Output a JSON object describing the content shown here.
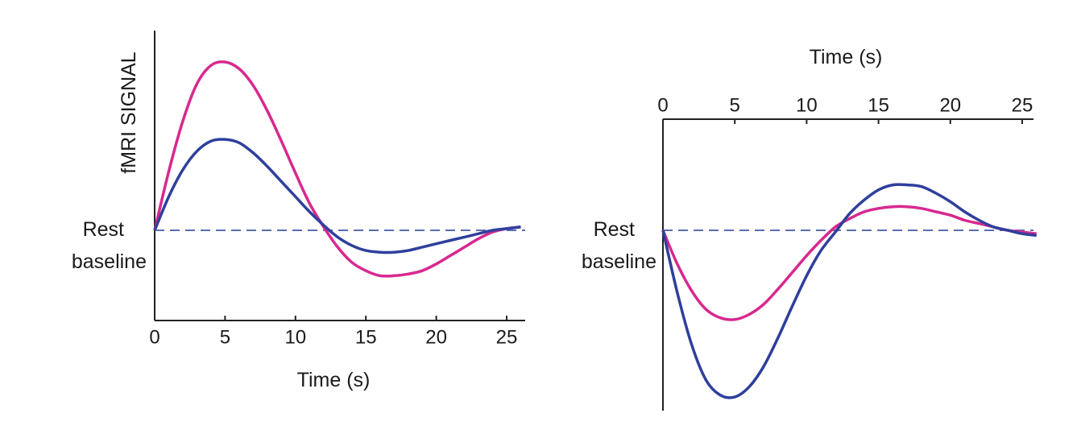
{
  "chart_data": [
    {
      "type": "line",
      "title": "",
      "xlabel": "Time (s)",
      "ylabel": "fMRI SIGNAL",
      "baseline_label": [
        "Rest",
        "baseline"
      ],
      "x_ticks": [
        "0",
        "5",
        "10",
        "15",
        "20",
        "25"
      ],
      "xlim": [
        0,
        26
      ],
      "ylim": [
        -0.54,
        1.18
      ],
      "grid": false,
      "x": [
        0,
        1,
        2,
        3,
        4,
        5,
        6,
        7,
        8,
        9,
        10,
        11,
        12,
        13,
        14,
        15,
        16,
        17,
        18,
        19,
        20,
        21,
        22,
        23,
        24,
        25,
        26
      ],
      "series": [
        {
          "name": "magenta",
          "color": "#d8288f",
          "values": [
            0,
            0.35,
            0.65,
            0.87,
            0.98,
            1.0,
            0.96,
            0.86,
            0.71,
            0.53,
            0.34,
            0.16,
            0.02,
            -0.1,
            -0.19,
            -0.24,
            -0.27,
            -0.27,
            -0.26,
            -0.24,
            -0.2,
            -0.15,
            -0.1,
            -0.05,
            -0.01,
            0.01,
            0.02
          ]
        },
        {
          "name": "blue",
          "color": "#2f3f9c",
          "values": [
            0,
            0.2,
            0.36,
            0.47,
            0.53,
            0.54,
            0.52,
            0.46,
            0.38,
            0.29,
            0.2,
            0.11,
            0.03,
            -0.04,
            -0.09,
            -0.12,
            -0.13,
            -0.13,
            -0.12,
            -0.1,
            -0.08,
            -0.06,
            -0.04,
            -0.02,
            0,
            0.01,
            0.02
          ]
        }
      ],
      "baseline_color": "#5b6cb3"
    },
    {
      "type": "line",
      "title": "",
      "xlabel": "Time (s)",
      "ylabel": "",
      "baseline_label": [
        "Rest",
        "baseline"
      ],
      "x_ticks": [
        "0",
        "5",
        "10",
        "15",
        "20",
        "25"
      ],
      "xaxis_position": "top",
      "xlim": [
        0,
        26
      ],
      "ylim": [
        -1.07,
        0.66
      ],
      "grid": false,
      "x": [
        0,
        1,
        2,
        3,
        4,
        5,
        6,
        7,
        8,
        9,
        10,
        11,
        12,
        13,
        14,
        15,
        16,
        17,
        18,
        19,
        20,
        21,
        22,
        23,
        24,
        25,
        26
      ],
      "series": [
        {
          "name": "magenta",
          "color": "#d8288f",
          "values": [
            0,
            -0.2,
            -0.36,
            -0.47,
            -0.52,
            -0.53,
            -0.5,
            -0.44,
            -0.35,
            -0.25,
            -0.15,
            -0.06,
            0.02,
            0.07,
            0.11,
            0.13,
            0.14,
            0.14,
            0.13,
            0.11,
            0.09,
            0.06,
            0.04,
            0.02,
            0,
            -0.01,
            -0.02
          ]
        },
        {
          "name": "blue",
          "color": "#2f3f9c",
          "values": [
            0,
            -0.37,
            -0.68,
            -0.89,
            -0.98,
            -0.99,
            -0.93,
            -0.81,
            -0.64,
            -0.45,
            -0.27,
            -0.12,
            -0.01,
            0.1,
            0.18,
            0.24,
            0.27,
            0.27,
            0.26,
            0.22,
            0.17,
            0.11,
            0.06,
            0.02,
            0,
            -0.02,
            -0.03
          ]
        }
      ],
      "baseline_color": "#5b6cb3"
    }
  ]
}
